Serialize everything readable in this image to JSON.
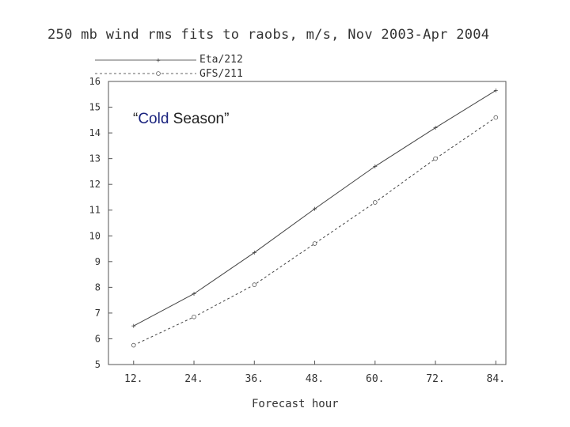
{
  "chart_data": {
    "type": "line",
    "title": "250 mb wind rms fits to raobs, m/s, Nov 2003-Apr 2004",
    "annotation": {
      "open_quote": "“",
      "accent_word": "Cold",
      "rest": " Season”"
    },
    "xlabel": "Forecast hour",
    "ylabel": "",
    "x": [
      12,
      24,
      36,
      48,
      60,
      72,
      84
    ],
    "x_tick_labels": [
      "12.",
      "24.",
      "36.",
      "48.",
      "60.",
      "72.",
      "84."
    ],
    "y_ticks": [
      5,
      6,
      7,
      8,
      9,
      10,
      11,
      12,
      13,
      14,
      15,
      16
    ],
    "xlim": [
      7,
      86
    ],
    "ylim": [
      5,
      16
    ],
    "grid": false,
    "legend_position": "top-left",
    "series": [
      {
        "name": "Eta/212",
        "marker": "+",
        "line_style": "solid",
        "values": [
          6.5,
          7.75,
          9.35,
          11.05,
          12.7,
          14.2,
          15.65
        ]
      },
      {
        "name": "GFS/211",
        "marker": "o",
        "line_style": "dashed",
        "values": [
          5.75,
          6.85,
          8.1,
          9.7,
          11.3,
          13.0,
          14.6
        ]
      }
    ],
    "colors": {
      "axis": "#555555",
      "line": "#444444",
      "text": "#333333",
      "accent": "#1a237e"
    }
  }
}
